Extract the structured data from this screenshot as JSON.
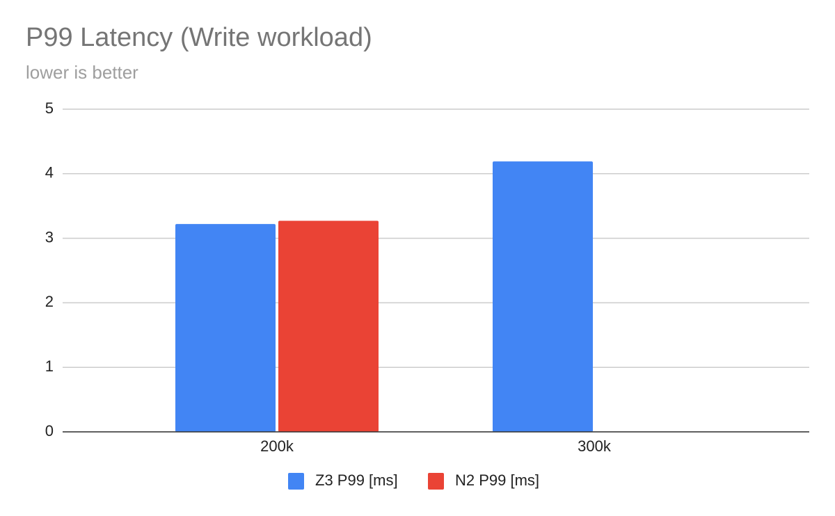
{
  "chart_data": {
    "type": "bar",
    "title": "P99 Latency (Write workload)",
    "subtitle": "lower is better",
    "categories": [
      "200k",
      "300k"
    ],
    "series": [
      {
        "name": "Z3 P99 [ms]",
        "color": "#4285f4",
        "values": [
          3.22,
          4.19
        ]
      },
      {
        "name": "N2 P99 [ms]",
        "color": "#ea4335",
        "values": [
          3.27,
          null
        ]
      }
    ],
    "ylim": [
      0,
      5
    ],
    "yticks": [
      0,
      1,
      2,
      3,
      4,
      5
    ],
    "grid": true,
    "legend": "bottom"
  }
}
